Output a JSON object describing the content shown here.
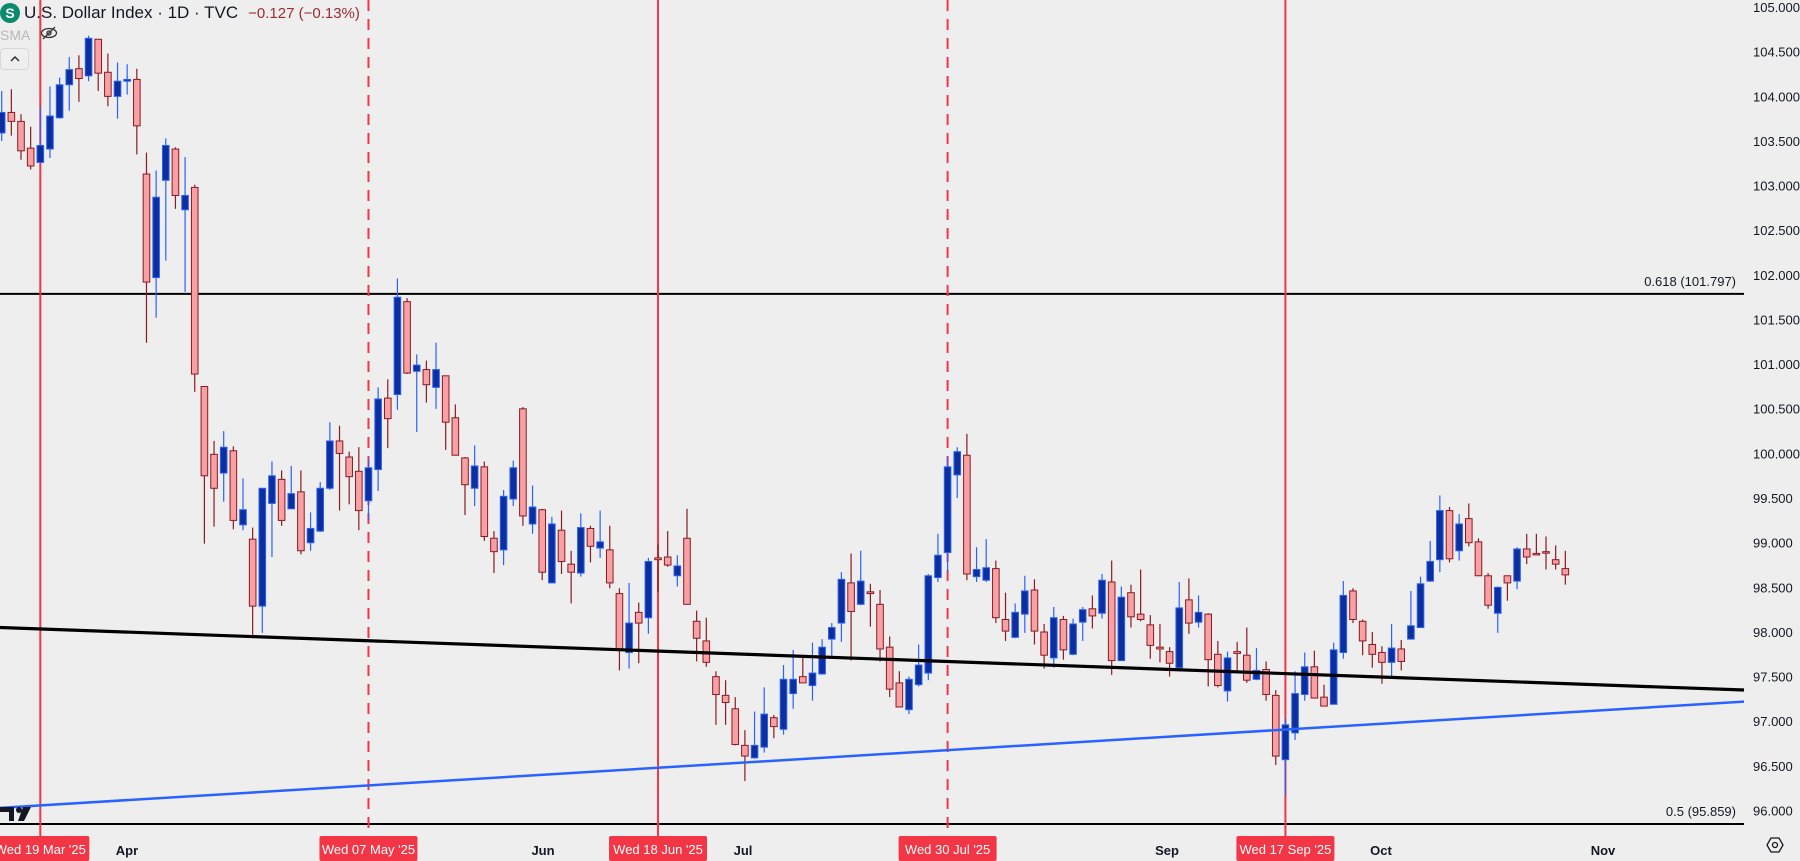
{
  "header": {
    "symbol_icon": "dollar-s-icon",
    "symbol_letter": "S",
    "title": "U.S. Dollar Index · 1D · TVC",
    "change": "−0.127 (−0.13%)",
    "indicator": "SMA",
    "indicator_visibility_icon": "eye-crossed-icon",
    "collapse_icon": "chevron-up-icon"
  },
  "colors": {
    "background": "#eeeeee",
    "up_body": "#0d2f9b",
    "up_border": "#2962ff",
    "down_body": "#f7a1a4",
    "down_border": "#8b1a22",
    "marker": "#f23645",
    "trendline_black": "#000000",
    "trendline_blue": "#2962ff",
    "change_text": "#9c2b35"
  },
  "chart_data": {
    "type": "candlestick",
    "title": "U.S. Dollar Index · 1D · TVC",
    "ylim": [
      95.82,
      105.09
    ],
    "y_ticks": [
      "105.000",
      "104.500",
      "104.000",
      "103.500",
      "103.000",
      "102.500",
      "102.000",
      "101.500",
      "101.000",
      "100.500",
      "100.000",
      "99.500",
      "99.000",
      "98.500",
      "98.000",
      "97.500",
      "97.000",
      "96.500",
      "96.000"
    ],
    "x_ticks": [
      "Apr",
      "Jun",
      "Jul",
      "Sep",
      "Oct",
      "Nov"
    ],
    "date_markers": [
      {
        "label": "Wed 19 Mar '25",
        "style": "solid"
      },
      {
        "label": "Wed 07 May '25",
        "style": "dashed"
      },
      {
        "label": "Wed 18 Jun '25",
        "style": "solid"
      },
      {
        "label": "Wed 30 Jul '25",
        "style": "dashed"
      },
      {
        "label": "Wed 17 Sep '25",
        "style": "solid"
      }
    ],
    "fib_levels": [
      {
        "label": "0.618 (101.797)",
        "price": 101.797
      },
      {
        "label": "0.5 (95.859)",
        "price": 95.859
      }
    ],
    "trendlines": [
      {
        "color": "black",
        "price_start": 98.06,
        "price_end": 97.36
      },
      {
        "color": "blue",
        "price_start": 96.04,
        "price_end": 97.23
      }
    ],
    "ohlc_fields": [
      "open",
      "high",
      "low",
      "close"
    ],
    "candles": [
      [
        103.6,
        104.07,
        103.51,
        103.83
      ],
      [
        103.83,
        104.09,
        103.57,
        103.73
      ],
      [
        103.73,
        103.81,
        103.3,
        103.4
      ],
      [
        103.43,
        103.67,
        103.19,
        103.23
      ],
      [
        103.27,
        103.9,
        103.26,
        103.46
      ],
      [
        103.42,
        104.12,
        103.32,
        103.79
      ],
      [
        103.77,
        104.22,
        103.76,
        104.14
      ],
      [
        104.14,
        104.45,
        103.85,
        104.31
      ],
      [
        104.32,
        104.47,
        103.95,
        104.21
      ],
      [
        104.24,
        104.69,
        104.18,
        104.66
      ],
      [
        104.65,
        104.65,
        104.07,
        104.27
      ],
      [
        104.28,
        104.49,
        103.9,
        104.01
      ],
      [
        104.01,
        104.39,
        103.76,
        104.18
      ],
      [
        104.18,
        104.37,
        104.03,
        104.2
      ],
      [
        104.2,
        104.32,
        103.36,
        103.68
      ],
      [
        103.14,
        103.38,
        101.25,
        101.93
      ],
      [
        101.98,
        103.18,
        101.53,
        102.88
      ],
      [
        103.07,
        103.54,
        102.17,
        103.46
      ],
      [
        103.42,
        103.44,
        102.75,
        102.9
      ],
      [
        102.74,
        103.33,
        101.82,
        102.9
      ],
      [
        102.99,
        103.02,
        100.7,
        100.9
      ],
      [
        100.76,
        100.76,
        99.0,
        99.76
      ],
      [
        100.0,
        100.15,
        99.19,
        99.62
      ],
      [
        99.79,
        100.26,
        99.47,
        100.08
      ],
      [
        100.04,
        100.09,
        99.16,
        99.26
      ],
      [
        99.21,
        99.73,
        99.15,
        99.38
      ],
      [
        99.05,
        99.18,
        97.94,
        98.3
      ],
      [
        98.3,
        99.62,
        98.0,
        99.62
      ],
      [
        99.45,
        99.92,
        98.85,
        99.76
      ],
      [
        99.72,
        99.82,
        99.2,
        99.26
      ],
      [
        99.39,
        99.87,
        99.39,
        99.56
      ],
      [
        99.58,
        99.82,
        98.88,
        98.92
      ],
      [
        99.01,
        99.35,
        98.92,
        99.17
      ],
      [
        99.14,
        99.69,
        99.13,
        99.62
      ],
      [
        99.62,
        100.36,
        99.6,
        100.15
      ],
      [
        100.15,
        100.32,
        99.37,
        100.01
      ],
      [
        99.97,
        100.03,
        99.44,
        99.75
      ],
      [
        99.81,
        100.08,
        99.15,
        99.37
      ],
      [
        99.48,
        99.95,
        99.26,
        99.85
      ],
      [
        99.83,
        100.75,
        99.59,
        100.62
      ],
      [
        100.63,
        100.84,
        100.07,
        100.4
      ],
      [
        100.67,
        101.97,
        100.5,
        101.76
      ],
      [
        101.71,
        101.75,
        100.9,
        100.91
      ],
      [
        100.93,
        101.12,
        100.25,
        101.0
      ],
      [
        100.95,
        101.05,
        100.58,
        100.78
      ],
      [
        100.75,
        101.25,
        100.51,
        100.95
      ],
      [
        100.88,
        100.88,
        100.05,
        100.36
      ],
      [
        100.41,
        100.56,
        99.99,
        99.99
      ],
      [
        99.96,
        99.97,
        99.32,
        99.66
      ],
      [
        99.62,
        100.1,
        99.42,
        99.87
      ],
      [
        99.86,
        99.92,
        99.03,
        99.08
      ],
      [
        99.06,
        99.14,
        98.67,
        98.91
      ],
      [
        98.93,
        99.6,
        98.76,
        99.53
      ],
      [
        99.5,
        99.93,
        99.42,
        99.85
      ],
      [
        100.51,
        100.53,
        99.2,
        99.31
      ],
      [
        99.22,
        99.65,
        99.11,
        99.41
      ],
      [
        99.38,
        99.39,
        98.59,
        98.68
      ],
      [
        98.56,
        99.3,
        98.56,
        99.22
      ],
      [
        99.15,
        99.37,
        98.66,
        98.8
      ],
      [
        98.77,
        98.92,
        98.33,
        98.68
      ],
      [
        98.67,
        99.34,
        98.63,
        99.18
      ],
      [
        99.17,
        99.2,
        98.79,
        98.97
      ],
      [
        98.95,
        99.37,
        98.84,
        99.02
      ],
      [
        98.93,
        99.2,
        98.5,
        98.56
      ],
      [
        98.44,
        98.5,
        97.58,
        97.81
      ],
      [
        97.78,
        98.56,
        97.6,
        98.11
      ],
      [
        98.23,
        98.34,
        97.66,
        98.11
      ],
      [
        98.17,
        98.84,
        97.99,
        98.8
      ],
      [
        98.84,
        98.99,
        98.46,
        98.82
      ],
      [
        98.85,
        99.14,
        98.74,
        98.76
      ],
      [
        98.64,
        98.87,
        98.52,
        98.75
      ],
      [
        99.06,
        99.39,
        98.32,
        98.32
      ],
      [
        98.13,
        98.25,
        97.68,
        97.94
      ],
      [
        97.91,
        98.17,
        97.62,
        97.67
      ],
      [
        97.51,
        97.57,
        96.97,
        97.31
      ],
      [
        97.3,
        97.47,
        96.97,
        97.22
      ],
      [
        97.15,
        97.28,
        96.74,
        96.75
      ],
      [
        96.74,
        96.91,
        96.34,
        96.62
      ],
      [
        96.6,
        97.12,
        96.59,
        96.74
      ],
      [
        96.72,
        97.39,
        96.66,
        97.09
      ],
      [
        97.05,
        97.08,
        96.82,
        96.95
      ],
      [
        96.92,
        97.64,
        96.86,
        97.48
      ],
      [
        97.32,
        97.81,
        97.15,
        97.48
      ],
      [
        97.51,
        97.72,
        97.44,
        97.44
      ],
      [
        97.41,
        97.89,
        97.24,
        97.55
      ],
      [
        97.54,
        97.93,
        97.53,
        97.84
      ],
      [
        97.93,
        98.11,
        97.73,
        98.06
      ],
      [
        98.11,
        98.68,
        97.9,
        98.6
      ],
      [
        98.56,
        98.89,
        97.69,
        98.24
      ],
      [
        98.32,
        98.92,
        98.31,
        98.58
      ],
      [
        98.46,
        98.55,
        98.07,
        98.44
      ],
      [
        98.32,
        98.48,
        97.68,
        97.82
      ],
      [
        97.84,
        97.96,
        97.28,
        97.37
      ],
      [
        97.44,
        97.57,
        97.17,
        97.17
      ],
      [
        97.14,
        97.51,
        97.09,
        97.48
      ],
      [
        97.42,
        97.87,
        97.4,
        97.64
      ],
      [
        97.55,
        98.66,
        97.47,
        98.64
      ],
      [
        98.62,
        99.11,
        98.57,
        98.87
      ],
      [
        98.9,
        99.97,
        98.68,
        99.86
      ],
      [
        99.77,
        100.08,
        99.51,
        100.03
      ],
      [
        99.99,
        100.23,
        98.59,
        98.66
      ],
      [
        98.63,
        98.96,
        98.57,
        98.71
      ],
      [
        98.59,
        99.05,
        98.57,
        98.73
      ],
      [
        98.72,
        98.81,
        98.11,
        98.17
      ],
      [
        98.15,
        98.45,
        97.91,
        98.02
      ],
      [
        97.95,
        98.33,
        97.94,
        98.23
      ],
      [
        98.21,
        98.64,
        98.0,
        98.47
      ],
      [
        98.48,
        98.6,
        97.87,
        98.02
      ],
      [
        98.01,
        98.1,
        97.6,
        97.75
      ],
      [
        97.72,
        98.29,
        97.61,
        98.17
      ],
      [
        98.15,
        98.19,
        97.7,
        97.81
      ],
      [
        97.76,
        98.16,
        97.75,
        98.1
      ],
      [
        98.12,
        98.29,
        97.91,
        98.26
      ],
      [
        98.27,
        98.42,
        98.05,
        98.19
      ],
      [
        98.22,
        98.66,
        98.16,
        98.59
      ],
      [
        98.57,
        98.81,
        97.53,
        97.69
      ],
      [
        97.69,
        98.52,
        97.69,
        98.4
      ],
      [
        98.45,
        98.54,
        98.06,
        98.18
      ],
      [
        98.21,
        98.71,
        98.13,
        98.15
      ],
      [
        98.09,
        98.2,
        97.71,
        97.86
      ],
      [
        97.84,
        98.1,
        97.67,
        97.82
      ],
      [
        97.79,
        97.84,
        97.51,
        97.66
      ],
      [
        97.61,
        98.57,
        97.6,
        98.28
      ],
      [
        98.37,
        98.61,
        97.99,
        98.11
      ],
      [
        98.12,
        98.42,
        98.06,
        98.23
      ],
      [
        98.21,
        98.22,
        97.4,
        97.7
      ],
      [
        97.76,
        97.91,
        97.39,
        97.41
      ],
      [
        97.35,
        97.79,
        97.23,
        97.72
      ],
      [
        97.79,
        97.9,
        97.56,
        97.77
      ],
      [
        97.75,
        98.06,
        97.44,
        97.47
      ],
      [
        97.48,
        97.83,
        97.47,
        97.58
      ],
      [
        97.59,
        97.68,
        97.24,
        97.31
      ],
      [
        97.3,
        97.36,
        96.52,
        96.62
      ],
      [
        96.58,
        97.04,
        96.18,
        96.97
      ],
      [
        96.88,
        97.57,
        96.8,
        97.32
      ],
      [
        97.31,
        97.78,
        97.24,
        97.62
      ],
      [
        97.62,
        97.8,
        97.27,
        97.27
      ],
      [
        97.28,
        97.42,
        97.18,
        97.18
      ],
      [
        97.2,
        97.89,
        97.2,
        97.81
      ],
      [
        97.78,
        98.58,
        97.71,
        98.42
      ],
      [
        98.47,
        98.5,
        98.11,
        98.15
      ],
      [
        98.13,
        98.15,
        97.75,
        97.91
      ],
      [
        97.87,
        98.01,
        97.61,
        97.76
      ],
      [
        97.78,
        97.85,
        97.43,
        97.67
      ],
      [
        97.67,
        98.1,
        97.5,
        97.83
      ],
      [
        97.82,
        97.92,
        97.58,
        97.68
      ],
      [
        97.93,
        98.47,
        97.93,
        98.08
      ],
      [
        98.06,
        98.63,
        98.06,
        98.55
      ],
      [
        98.58,
        99.03,
        98.57,
        98.8
      ],
      [
        98.82,
        99.54,
        98.68,
        99.37
      ],
      [
        99.37,
        99.41,
        98.79,
        98.83
      ],
      [
        98.92,
        99.33,
        98.81,
        99.22
      ],
      [
        99.28,
        99.45,
        98.97,
        99.01
      ],
      [
        99.02,
        99.06,
        98.64,
        98.64
      ],
      [
        98.64,
        98.67,
        98.27,
        98.31
      ],
      [
        98.22,
        98.52,
        98.0,
        98.51
      ],
      [
        98.64,
        98.64,
        98.36,
        98.56
      ],
      [
        98.58,
        98.96,
        98.49,
        98.94
      ],
      [
        98.94,
        99.11,
        98.77,
        98.85
      ],
      [
        98.89,
        99.11,
        98.88,
        98.88
      ],
      [
        98.91,
        99.08,
        98.71,
        98.9
      ],
      [
        98.82,
        98.98,
        98.71,
        98.77
      ],
      [
        98.72,
        98.92,
        98.54,
        98.65
      ]
    ]
  },
  "footer": {
    "logo_icon": "tradingview-logo-icon",
    "settings_icon": "settings-hexagon-icon"
  }
}
